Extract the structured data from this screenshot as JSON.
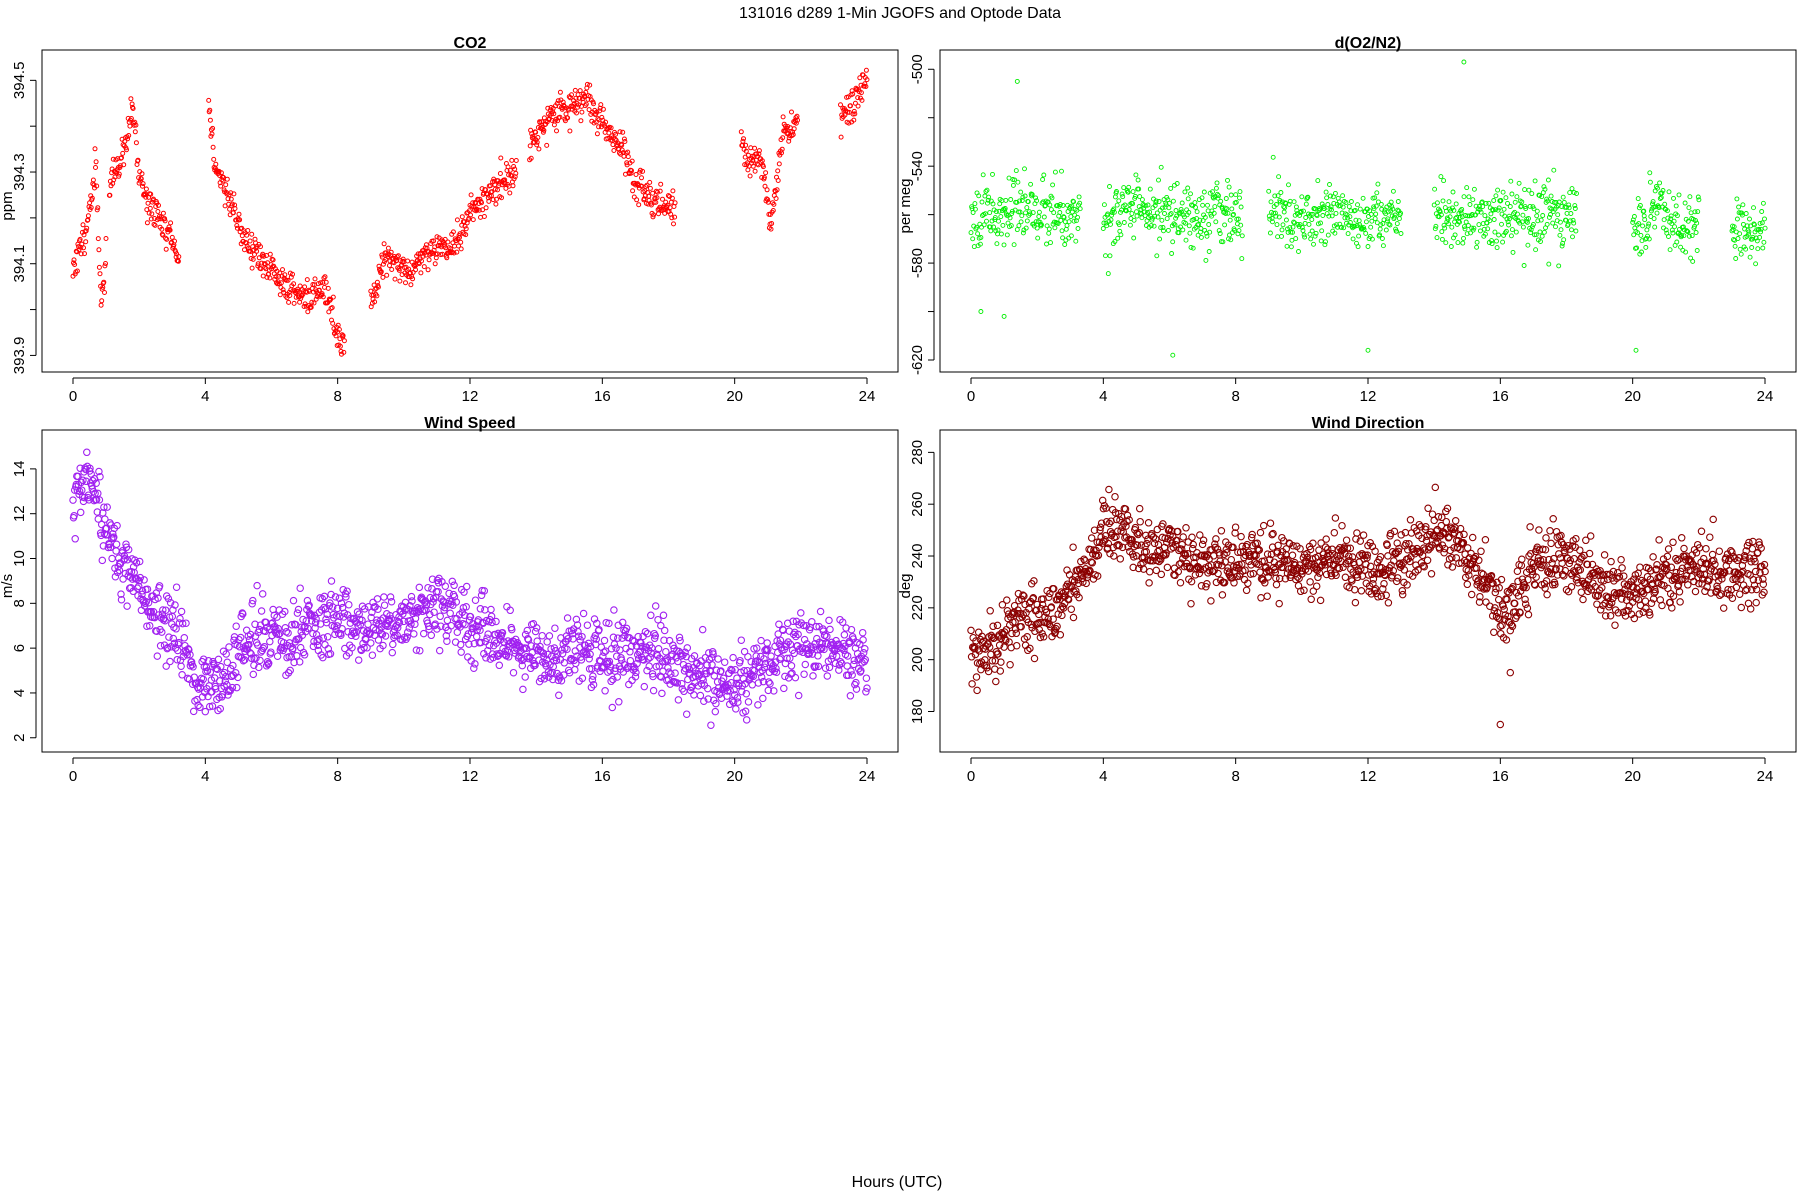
{
  "figure": {
    "title": "131016   d289   1-Min  JGOFS and Optode Data",
    "xlabel": "Hours (UTC)"
  },
  "chart_data": [
    {
      "type": "scatter",
      "title": "CO2",
      "xlabel": "",
      "ylabel": "ppm",
      "xlim": [
        0,
        24
      ],
      "ylim": [
        393.89,
        394.54
      ],
      "xticks": [
        0,
        4,
        8,
        12,
        16,
        20,
        24
      ],
      "yticks": [
        393.9,
        394.0,
        394.1,
        394.2,
        394.3,
        394.4,
        394.5
      ],
      "ytick_labels": [
        "393.9",
        "",
        "394.1",
        "",
        "394.3",
        "",
        "394.5"
      ],
      "color": "#ff0000",
      "marker_size": "small",
      "series": [
        {
          "segments": [
            {
              "x": [
                0.0,
                0.3,
                0.5,
                0.7,
                0.85,
                1.0
              ],
              "y": [
                394.09,
                394.15,
                394.22,
                394.3,
                394.02,
                394.1
              ]
            },
            {
              "x": [
                1.1,
                1.4,
                1.6,
                1.8,
                1.95,
                2.2,
                2.6,
                3.0,
                3.2
              ],
              "y": [
                394.28,
                394.32,
                394.35,
                394.45,
                394.32,
                394.24,
                394.2,
                394.15,
                394.1
              ]
            },
            {
              "x": [
                4.1,
                4.3,
                4.7,
                5.2,
                5.8,
                6.3,
                6.8,
                7.2,
                7.6,
                8.0,
                8.2
              ],
              "y": [
                394.45,
                394.31,
                394.25,
                394.15,
                394.1,
                394.06,
                394.04,
                394.02,
                394.05,
                393.94,
                393.92
              ]
            },
            {
              "x": [
                9.0,
                9.4,
                9.8,
                10.2,
                10.6,
                11.0,
                11.4,
                11.8,
                12.2,
                12.6,
                13.0,
                13.4
              ],
              "y": [
                394.01,
                394.12,
                394.1,
                394.08,
                394.12,
                394.14,
                394.13,
                394.18,
                394.23,
                394.25,
                394.28,
                394.31
              ]
            },
            {
              "x": [
                13.8,
                14.2,
                14.6,
                15.0,
                15.4,
                15.6,
                15.8,
                16.2,
                16.6,
                17.0,
                17.4,
                17.8,
                18.2
              ],
              "y": [
                394.35,
                394.4,
                394.43,
                394.44,
                394.45,
                394.46,
                394.43,
                394.38,
                394.36,
                394.27,
                394.25,
                394.23,
                394.22
              ]
            },
            {
              "x": [
                20.2,
                20.5,
                20.8,
                21.1,
                21.5,
                21.9
              ],
              "y": [
                394.37,
                394.32,
                394.33,
                394.2,
                394.39,
                394.41
              ]
            },
            {
              "x": [
                23.2,
                23.5,
                23.8,
                24.0
              ],
              "y": [
                394.42,
                394.45,
                394.47,
                394.52
              ]
            }
          ]
        }
      ]
    },
    {
      "type": "scatter",
      "title": "d(O2/N2)",
      "xlabel": "",
      "ylabel": "per meg",
      "xlim": [
        0,
        24
      ],
      "ylim": [
        -620,
        -497
      ],
      "xticks": [
        0,
        4,
        8,
        12,
        16,
        20,
        24
      ],
      "yticks": [
        -620,
        -600,
        -580,
        -560,
        -540,
        -520,
        -500
      ],
      "ytick_labels": [
        "-620",
        "",
        "-580",
        "",
        "-540",
        "",
        "-500"
      ],
      "color": "#00ee00",
      "marker_size": "small",
      "series": [
        {
          "segments": [
            {
              "x": [
                0.0,
                0.5,
                1.0,
                1.5,
                2.0,
                2.5,
                3.0,
                3.3
              ],
              "y": [
                -559,
                -558,
                -559,
                -557,
                -559,
                -558,
                -560,
                -559
              ]
            },
            {
              "x": [
                4.0,
                4.5,
                5.0,
                5.5,
                6.0,
                6.5,
                7.0,
                7.5,
                8.0,
                8.2
              ],
              "y": [
                -561,
                -560,
                -559,
                -560,
                -558,
                -559,
                -560,
                -559,
                -561,
                -560
              ]
            },
            {
              "x": [
                9.0,
                9.5,
                10.0,
                10.5,
                11.0,
                11.5,
                12.0,
                12.5,
                13.0
              ],
              "y": [
                -558,
                -560,
                -562,
                -561,
                -561,
                -562,
                -562,
                -562,
                -561
              ]
            },
            {
              "x": [
                14.0,
                14.5,
                15.0,
                15.5,
                16.0,
                16.5,
                17.0,
                17.5,
                18.0,
                18.3
              ],
              "y": [
                -562,
                -560,
                -561,
                -561,
                -560,
                -562,
                -561,
                -560,
                -561,
                -560
              ]
            },
            {
              "x": [
                20.0,
                20.4,
                20.8,
                21.2,
                21.6,
                22.0
              ],
              "y": [
                -563,
                -567,
                -556,
                -565,
                -567,
                -562
              ]
            },
            {
              "x": [
                23.0,
                23.4,
                23.7,
                24.0
              ],
              "y": [
                -567,
                -564,
                -568,
                -565
              ]
            }
          ],
          "outliers": {
            "x": [
              1.4,
              1.0,
              14.9,
              0.3,
              20.1,
              6.1,
              12.0
            ],
            "y": [
              -505,
              -602,
              -497,
              -600,
              -616,
              -618,
              -616
            ]
          }
        }
      ]
    },
    {
      "type": "scatter",
      "title": "Wind Speed",
      "xlabel": "",
      "ylabel": "m/s",
      "xlim": [
        0,
        24
      ],
      "ylim": [
        1.9,
        15.2
      ],
      "xticks": [
        0,
        4,
        8,
        12,
        16,
        20,
        24
      ],
      "yticks": [
        2,
        4,
        6,
        8,
        10,
        12,
        14
      ],
      "ytick_labels": [
        "2",
        "4",
        "6",
        "8",
        "10",
        "12",
        "14"
      ],
      "color": "#a020f0",
      "marker_size": "large",
      "series": [
        {
          "segments": [
            {
              "x": [
                0.0,
                0.4,
                0.8,
                1.2,
                1.6,
                2.0,
                2.5,
                3.0,
                3.5,
                3.8,
                4.0,
                4.4,
                5.0,
                5.5,
                6.0,
                6.5,
                7.0,
                7.5,
                8.0,
                8.5,
                9.0,
                9.5,
                10.0,
                10.5,
                11.0,
                11.5,
                12.0,
                12.5,
                13.0,
                13.5,
                14.0,
                14.5,
                15.0,
                15.5,
                16.0,
                16.5,
                17.0,
                17.5,
                18.0,
                18.5,
                19.0,
                19.5,
                20.0,
                20.5,
                21.0,
                21.5,
                22.0,
                22.5,
                23.0,
                23.5,
                24.0
              ],
              "y": [
                12.2,
                13.5,
                12.0,
                10.5,
                9.8,
                8.6,
                7.3,
                6.8,
                5.5,
                4.0,
                4.4,
                4.2,
                5.8,
                6.5,
                6.6,
                6.3,
                6.7,
                7.2,
                7.3,
                7.0,
                6.8,
                7.2,
                7.3,
                7.5,
                7.8,
                7.9,
                7.0,
                6.5,
                6.2,
                5.9,
                5.7,
                5.3,
                6.0,
                5.7,
                5.5,
                5.6,
                5.9,
                6.1,
                5.5,
                5.0,
                4.8,
                4.4,
                4.4,
                4.8,
                5.0,
                5.6,
                6.2,
                6.0,
                6.2,
                5.8,
                5.2
              ]
            }
          ]
        }
      ]
    },
    {
      "type": "scatter",
      "title": "Wind Direction",
      "xlabel": "",
      "ylabel": "deg",
      "xlim": [
        0,
        24
      ],
      "ylim": [
        169,
        284
      ],
      "xticks": [
        0,
        4,
        8,
        12,
        16,
        20,
        24
      ],
      "yticks": [
        180,
        200,
        220,
        240,
        260,
        280
      ],
      "ytick_labels": [
        "180",
        "200",
        "220",
        "240",
        "260",
        "280"
      ],
      "color": "#8b0000",
      "marker_size": "large",
      "series": [
        {
          "segments": [
            {
              "x": [
                0.0,
                0.5,
                1.0,
                1.5,
                2.0,
                2.5,
                3.0,
                3.5,
                3.8,
                4.0,
                4.5,
                5.0,
                5.5,
                6.0,
                6.5,
                7.0,
                7.5,
                8.0,
                8.5,
                9.0,
                9.5,
                10.0,
                10.5,
                11.0,
                11.5,
                12.0,
                12.5,
                13.0,
                13.5,
                14.0,
                14.5,
                15.0,
                15.4,
                15.8,
                16.0,
                16.3,
                16.6,
                17.0,
                17.5,
                18.0,
                18.5,
                19.0,
                19.5,
                20.0,
                20.5,
                21.0,
                21.5,
                22.0,
                22.5,
                23.0,
                23.5,
                24.0
              ],
              "y": [
                201,
                205,
                210,
                215,
                218,
                216,
                226,
                232,
                245,
                252,
                250,
                244,
                242,
                246,
                238,
                236,
                240,
                238,
                240,
                236,
                238,
                236,
                238,
                238,
                236,
                236,
                236,
                238,
                242,
                248,
                244,
                240,
                232,
                224,
                218,
                220,
                226,
                236,
                238,
                240,
                236,
                228,
                226,
                226,
                226,
                232,
                234,
                236,
                234,
                234,
                235,
                236
              ]
            }
          ],
          "outliers": {
            "x": [
              16.0,
              16.3
            ],
            "y": [
              175,
              195
            ]
          }
        }
      ]
    }
  ]
}
